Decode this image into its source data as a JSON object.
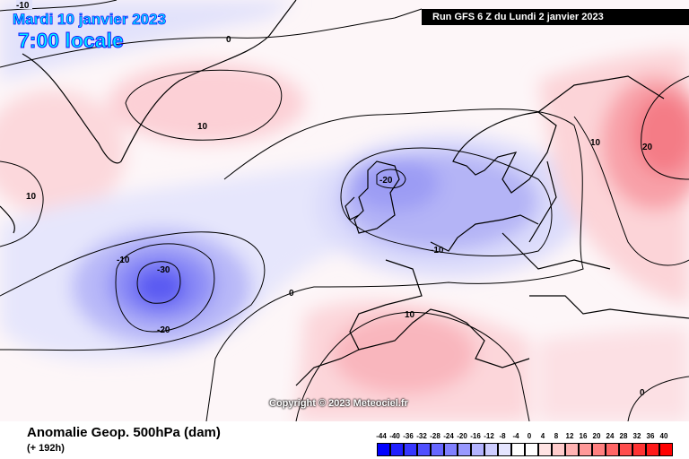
{
  "header": {
    "date": "Mardi 10 janvier 2023",
    "time": "7:00 locale",
    "run": "Run GFS 6 Z du Lundi 2 janvier 2023"
  },
  "map": {
    "copyright": "Copyright © 2023 Meteociel.fr",
    "contour_labels": [
      "-10",
      "0",
      "10",
      "10",
      "-10",
      "-30",
      "-20",
      "0",
      "-20",
      "-10",
      "10",
      "10",
      "20",
      "0"
    ]
  },
  "footer": {
    "parameter": "Anomalie Geop. 500hPa (dam)",
    "horizon": "(+ 192h)"
  },
  "legend": {
    "labels": [
      "-44",
      "-40",
      "-36",
      "-32",
      "-28",
      "-24",
      "-20",
      "-16",
      "-12",
      "-8",
      "-4",
      "0",
      "4",
      "8",
      "12",
      "16",
      "20",
      "24",
      "28",
      "32",
      "36",
      "40"
    ],
    "colors": [
      "#0000ff",
      "#1f1fff",
      "#3737ff",
      "#4f4fff",
      "#6767ff",
      "#8080ff",
      "#9999ff",
      "#b3b3ff",
      "#cdcdff",
      "#e5e5ff",
      "#ffffff",
      "#ffffff",
      "#ffe3e3",
      "#ffcccc",
      "#ffb3b3",
      "#ff9999",
      "#ff8080",
      "#ff6666",
      "#ff4d4d",
      "#ff3333",
      "#ff1a1a",
      "#ff0000"
    ]
  }
}
